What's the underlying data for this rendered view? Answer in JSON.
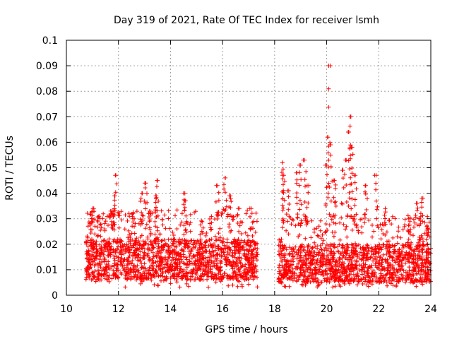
{
  "chart_data": {
    "type": "scatter",
    "title": "Day 319 of 2021, Rate Of TEC Index for receiver lsmh",
    "xlabel": "GPS time / hours",
    "ylabel": "ROTI / TECUs",
    "xlim": [
      10,
      24
    ],
    "ylim": [
      0,
      0.1
    ],
    "x_ticks": [
      "10",
      "12",
      "14",
      "16",
      "18",
      "20",
      "22",
      "24"
    ],
    "y_ticks": [
      "0",
      "0.01",
      "0.02",
      "0.03",
      "0.04",
      "0.05",
      "0.06",
      "0.07",
      "0.08",
      "0.09",
      "0.1"
    ],
    "x_tick_values": [
      10,
      12,
      14,
      16,
      18,
      20,
      22,
      24
    ],
    "y_tick_values": [
      0,
      0.01,
      0.02,
      0.03,
      0.04,
      0.05,
      0.06,
      0.07,
      0.08,
      0.09,
      0.1
    ],
    "grid": true,
    "marker": "+",
    "marker_color": "#ff0000",
    "series": [
      {
        "name": "ROTI",
        "segments": [
          {
            "x_range": [
              10.75,
              17.35
            ],
            "baseline": [
              0.006,
              0.022
            ]
          },
          {
            "x_range": [
              18.15,
              24.0
            ],
            "baseline": [
              0.005,
              0.02
            ]
          }
        ],
        "peaks": [
          {
            "x": 11.05,
            "y": 0.034
          },
          {
            "x": 11.25,
            "y": 0.031
          },
          {
            "x": 11.75,
            "y": 0.033
          },
          {
            "x": 11.9,
            "y": 0.047
          },
          {
            "x": 11.85,
            "y": 0.039
          },
          {
            "x": 12.55,
            "y": 0.03
          },
          {
            "x": 12.9,
            "y": 0.04
          },
          {
            "x": 13.05,
            "y": 0.044
          },
          {
            "x": 13.2,
            "y": 0.033
          },
          {
            "x": 13.5,
            "y": 0.045
          },
          {
            "x": 13.45,
            "y": 0.039
          },
          {
            "x": 14.5,
            "y": 0.04
          },
          {
            "x": 14.55,
            "y": 0.037
          },
          {
            "x": 15.8,
            "y": 0.043
          },
          {
            "x": 16.1,
            "y": 0.046
          },
          {
            "x": 16.3,
            "y": 0.039
          },
          {
            "x": 16.6,
            "y": 0.034
          },
          {
            "x": 17.1,
            "y": 0.034
          },
          {
            "x": 18.3,
            "y": 0.052
          },
          {
            "x": 18.35,
            "y": 0.047
          },
          {
            "x": 18.5,
            "y": 0.041
          },
          {
            "x": 18.85,
            "y": 0.048
          },
          {
            "x": 19.0,
            "y": 0.051
          },
          {
            "x": 19.15,
            "y": 0.053
          },
          {
            "x": 19.25,
            "y": 0.043
          },
          {
            "x": 20.0,
            "y": 0.051
          },
          {
            "x": 20.05,
            "y": 0.062
          },
          {
            "x": 20.08,
            "y": 0.09
          },
          {
            "x": 20.15,
            "y": 0.059
          },
          {
            "x": 20.3,
            "y": 0.045
          },
          {
            "x": 20.6,
            "y": 0.049
          },
          {
            "x": 20.75,
            "y": 0.053
          },
          {
            "x": 20.85,
            "y": 0.064
          },
          {
            "x": 20.9,
            "y": 0.07
          },
          {
            "x": 20.95,
            "y": 0.058
          },
          {
            "x": 21.1,
            "y": 0.047
          },
          {
            "x": 21.5,
            "y": 0.043
          },
          {
            "x": 21.9,
            "y": 0.047
          },
          {
            "x": 22.25,
            "y": 0.034
          },
          {
            "x": 23.15,
            "y": 0.03
          },
          {
            "x": 23.45,
            "y": 0.036
          },
          {
            "x": 23.65,
            "y": 0.038
          },
          {
            "x": 23.85,
            "y": 0.027
          }
        ]
      }
    ]
  }
}
